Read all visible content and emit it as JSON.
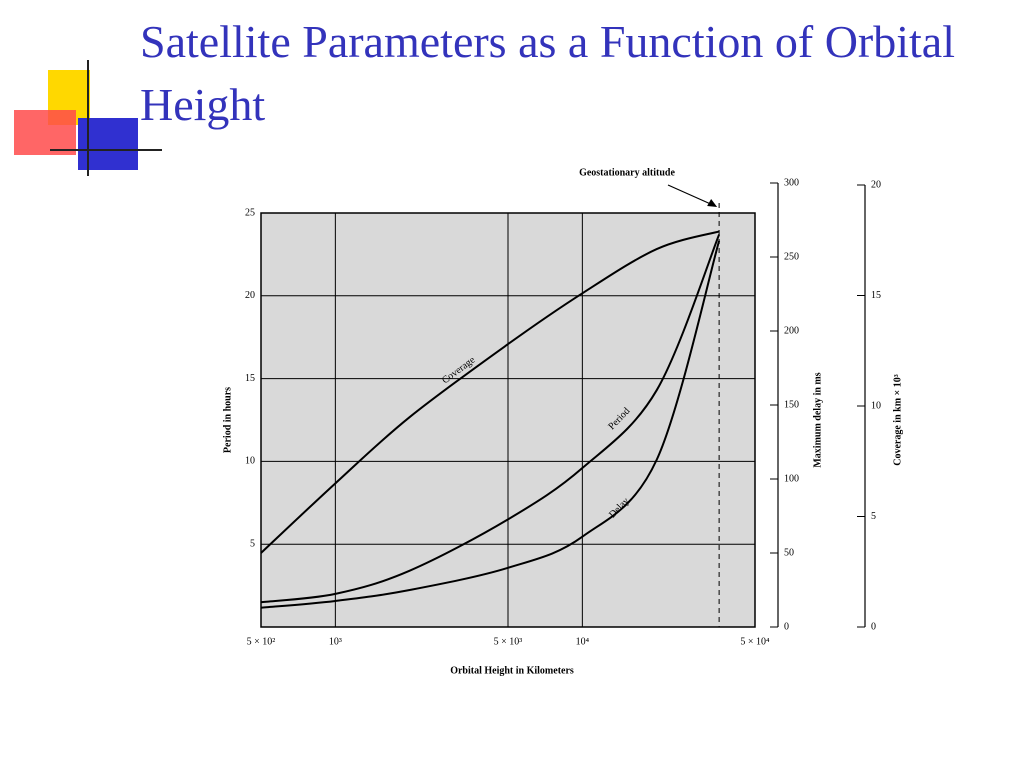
{
  "title": "Satellite Parameters as a Function of Orbital Height",
  "chart_data": {
    "type": "line",
    "x_label": "Orbital Height in Kilometers",
    "y_label": "Period in hours",
    "y2_label": "Maximum delay in ms",
    "y3_label": "Coverage in km × 10³",
    "log_x": true,
    "grid": true,
    "background": "#d9d9d9",
    "xlim": [
      500,
      50000
    ],
    "xticks": [
      {
        "value": 500,
        "label": "5 × 10²"
      },
      {
        "value": 1000,
        "label": "10³"
      },
      {
        "value": 5000,
        "label": "5 × 10³"
      },
      {
        "value": 10000,
        "label": "10⁴"
      },
      {
        "value": 50000,
        "label": "5 × 10⁴"
      }
    ],
    "ylim": [
      0,
      25
    ],
    "yticks": [
      5,
      10,
      15,
      20,
      25
    ],
    "y2lim": [
      0,
      300
    ],
    "y2ticks": [
      0,
      50,
      100,
      150,
      200,
      250,
      300
    ],
    "y3lim": [
      0,
      20
    ],
    "y3ticks": [
      0,
      5,
      10,
      15,
      20
    ],
    "x": [
      500,
      1000,
      2000,
      5000,
      10000,
      20000,
      35786
    ],
    "series": [
      {
        "name": "Coverage",
        "color": "#000000",
        "axis": "y3",
        "values": [
          3.35,
          6.5,
          9.5,
          12.8,
          15.1,
          17.1,
          17.9
        ]
      },
      {
        "name": "Period",
        "color": "#000000",
        "values": [
          1.5,
          2.0,
          3.4,
          6.5,
          9.6,
          14.3,
          23.7
        ]
      },
      {
        "name": "Delay",
        "color": "#000000",
        "axis": "y2",
        "values": [
          13,
          17.6,
          25,
          40,
          61,
          113,
          261
        ]
      }
    ],
    "annotation": {
      "text": "Geostationary altitude",
      "x": 35786
    }
  }
}
